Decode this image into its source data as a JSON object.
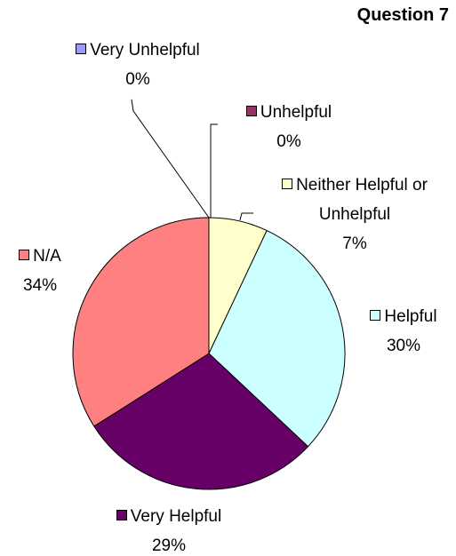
{
  "chart_data": {
    "type": "pie",
    "title": "Question 7",
    "categories": [
      "Very Unhelpful",
      "Unhelpful",
      "Neither Helpful or Unhelpful",
      "Helpful",
      "Very Helpful",
      "N/A"
    ],
    "values": [
      0,
      0,
      7,
      30,
      29,
      34
    ],
    "value_labels": [
      "0%",
      "0%",
      "7%",
      "30%",
      "29%",
      "34%"
    ],
    "colors": [
      "#9999ff",
      "#993366",
      "#ffffcc",
      "#ccffff",
      "#660066",
      "#ff8080"
    ]
  }
}
